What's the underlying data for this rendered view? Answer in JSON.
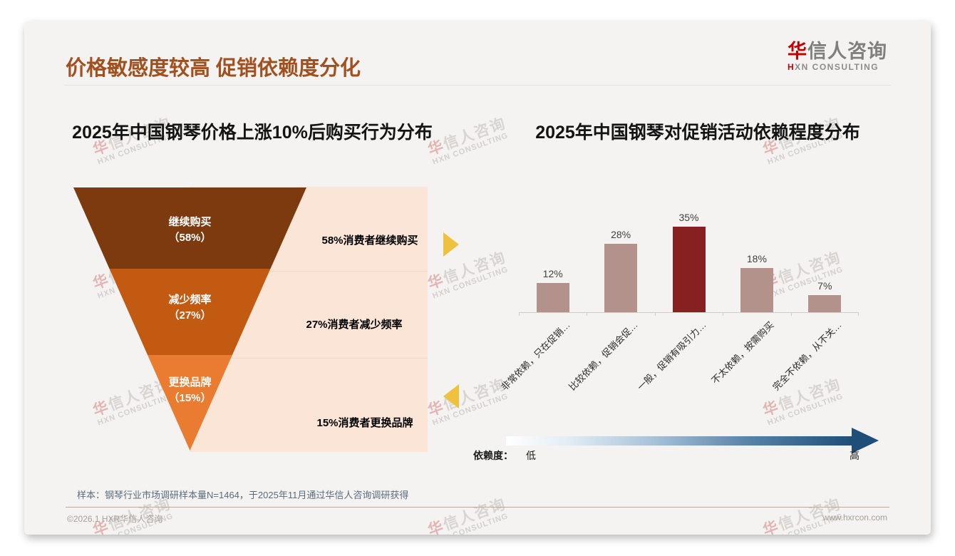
{
  "header": {
    "title": "价格敏感度较高 促销依赖度分化",
    "title_color": "#a0511f",
    "logo": {
      "cn_first": "华",
      "cn_rest": "信人咨询",
      "en_first": "H",
      "en_rest": "XN CONSULTING",
      "accent_color": "#c40000"
    }
  },
  "watermark": {
    "cn_first": "华",
    "cn_rest": "信人咨询",
    "en": "HXN CONSULTING"
  },
  "chart_data": [
    {
      "type": "funnel",
      "title": "2025年中国钢琴价格上涨10%后购买行为分布",
      "segments": [
        {
          "label": "继续购买",
          "value_label": "（58%）",
          "pct": 58,
          "color": "#7c3a0e",
          "annotation": "58%消费者继续购买"
        },
        {
          "label": "减少频率",
          "value_label": "（27%）",
          "pct": 27,
          "color": "#c35a12",
          "annotation": "27%消费者减少频率"
        },
        {
          "label": "更换品牌",
          "value_label": "（15%）",
          "pct": 15,
          "color": "#ea7c31",
          "annotation": "15%消费者更换品牌"
        }
      ],
      "annotation_bg": "#fbe5d6",
      "legend": false,
      "grid": false
    },
    {
      "type": "bar",
      "title": "2025年中国钢琴对促销活动依赖程度分布",
      "categories": [
        "非常依赖，只在促销…",
        "比较依赖，促销会促…",
        "一般，促销有吸引力…",
        "不太依赖，按需购买",
        "完全不依赖，从不关…"
      ],
      "values": [
        12,
        28,
        35,
        18,
        7
      ],
      "value_labels": [
        "12%",
        "28%",
        "35%",
        "18%",
        "7%"
      ],
      "bar_color": "#b2928a",
      "highlight_index": 2,
      "highlight_color": "#872020",
      "ylim": [
        0,
        40
      ],
      "grid": false,
      "legend": false,
      "dependency_axis": {
        "label": "依赖度：",
        "low": "低",
        "high": "高",
        "gradient_from": "#ffffff",
        "gradient_to": "#1f4e79"
      }
    }
  ],
  "footnote": "样本：钢琴行业市场调研样本量N=1464，于2025年11月通过华信人咨询调研获得",
  "footer": {
    "copyright": "©2026.1 HXR华信人咨询",
    "website": "www.hxrcon.com"
  }
}
